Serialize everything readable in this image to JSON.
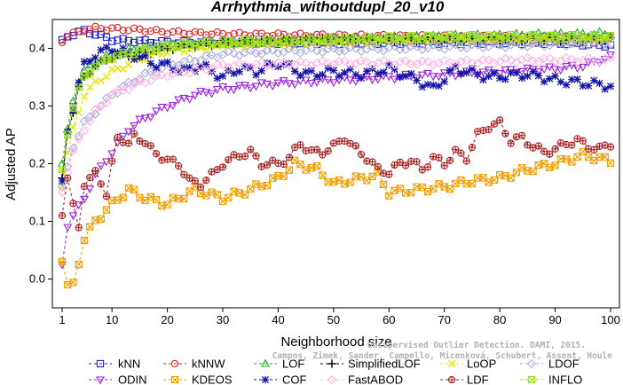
{
  "chart_data": {
    "type": "line",
    "title": "Arrhythmia_withoutdupl_20_v10",
    "xlabel": "Neighborhood size",
    "ylabel": "Adjusted AP",
    "xlim": [
      1,
      100
    ],
    "ylim": [
      -0.05,
      0.45
    ],
    "xticks": [
      1,
      10,
      20,
      30,
      40,
      50,
      60,
      70,
      80,
      90,
      100
    ],
    "yticks": [
      0.0,
      0.1,
      0.2,
      0.3,
      0.4
    ],
    "ytick_labels": [
      "0.0",
      "0.1",
      "0.2",
      "0.3",
      "0.4"
    ],
    "legend_position": "bottom",
    "watermark": [
      "Unsupervised Outlier Detection. DAMI, 2015.",
      "Campos, Zimek, Sander, Campello, Micenková, Schubert, Assent, Houle"
    ],
    "series": [
      {
        "name": "kNN",
        "color": "#2222cc",
        "marker": "square",
        "anchors": [
          [
            1,
            0.415
          ],
          [
            2,
            0.42
          ],
          [
            3,
            0.425
          ],
          [
            4,
            0.428
          ],
          [
            5,
            0.43
          ],
          [
            7,
            0.425
          ],
          [
            10,
            0.415
          ],
          [
            20,
            0.41
          ],
          [
            30,
            0.41
          ],
          [
            50,
            0.41
          ],
          [
            70,
            0.41
          ],
          [
            90,
            0.41
          ],
          [
            100,
            0.405
          ]
        ],
        "amp": 0.003
      },
      {
        "name": "kNNW",
        "color": "#dd2222",
        "marker": "circle",
        "anchors": [
          [
            1,
            0.41
          ],
          [
            2,
            0.42
          ],
          [
            3,
            0.425
          ],
          [
            5,
            0.432
          ],
          [
            7,
            0.435
          ],
          [
            10,
            0.434
          ],
          [
            15,
            0.432
          ],
          [
            20,
            0.428
          ],
          [
            30,
            0.425
          ],
          [
            50,
            0.422
          ],
          [
            70,
            0.42
          ],
          [
            100,
            0.418
          ]
        ],
        "amp": 0.003
      },
      {
        "name": "LOF",
        "color": "#22aa22",
        "marker": "triangle",
        "anchors": [
          [
            1,
            0.2
          ],
          [
            2,
            0.26
          ],
          [
            3,
            0.31
          ],
          [
            4,
            0.345
          ],
          [
            5,
            0.36
          ],
          [
            7,
            0.375
          ],
          [
            10,
            0.39
          ],
          [
            15,
            0.4
          ],
          [
            20,
            0.405
          ],
          [
            30,
            0.41
          ],
          [
            50,
            0.415
          ],
          [
            70,
            0.42
          ],
          [
            100,
            0.425
          ]
        ],
        "amp": 0.004
      },
      {
        "name": "SimplifiedLOF",
        "color": "#000000",
        "marker": "plus",
        "anchors": [
          [
            1,
            0.175
          ],
          [
            2,
            0.255
          ],
          [
            3,
            0.29
          ],
          [
            4,
            0.33
          ],
          [
            5,
            0.35
          ],
          [
            7,
            0.37
          ],
          [
            10,
            0.385
          ],
          [
            15,
            0.39
          ],
          [
            20,
            0.4
          ],
          [
            30,
            0.41
          ],
          [
            50,
            0.415
          ],
          [
            70,
            0.415
          ],
          [
            100,
            0.415
          ]
        ],
        "amp": 0.004
      },
      {
        "name": "LoOP",
        "color": "#e6e600",
        "marker": "x",
        "anchors": [
          [
            1,
            0.16
          ],
          [
            2,
            0.22
          ],
          [
            3,
            0.26
          ],
          [
            4,
            0.29
          ],
          [
            5,
            0.32
          ],
          [
            7,
            0.34
          ],
          [
            10,
            0.36
          ],
          [
            15,
            0.38
          ],
          [
            20,
            0.395
          ],
          [
            30,
            0.405
          ],
          [
            50,
            0.41
          ],
          [
            70,
            0.415
          ],
          [
            100,
            0.415
          ]
        ],
        "amp": 0.004
      },
      {
        "name": "LDOF",
        "color": "#aaaadd",
        "marker": "diamond",
        "anchors": [
          [
            1,
            0.16
          ],
          [
            3,
            0.23
          ],
          [
            5,
            0.27
          ],
          [
            7,
            0.29
          ],
          [
            10,
            0.32
          ],
          [
            15,
            0.35
          ],
          [
            20,
            0.37
          ],
          [
            30,
            0.39
          ],
          [
            40,
            0.395
          ],
          [
            60,
            0.4
          ],
          [
            80,
            0.405
          ],
          [
            100,
            0.41
          ]
        ],
        "amp": 0.004
      },
      {
        "name": "ODIN",
        "color": "#9922dd",
        "marker": "triangle-down",
        "anchors": [
          [
            1,
            0.025
          ],
          [
            2,
            0.09
          ],
          [
            3,
            0.11
          ],
          [
            5,
            0.14
          ],
          [
            7,
            0.18
          ],
          [
            10,
            0.22
          ],
          [
            13,
            0.26
          ],
          [
            16,
            0.28
          ],
          [
            20,
            0.3
          ],
          [
            25,
            0.32
          ],
          [
            30,
            0.33
          ],
          [
            40,
            0.34
          ],
          [
            50,
            0.345
          ],
          [
            60,
            0.35
          ],
          [
            70,
            0.355
          ],
          [
            80,
            0.36
          ],
          [
            90,
            0.365
          ],
          [
            95,
            0.37
          ],
          [
            100,
            0.385
          ]
        ],
        "amp": 0.004
      },
      {
        "name": "KDEOS",
        "color": "#f0a000",
        "marker": "square-x",
        "anchors": [
          [
            1,
            0.03
          ],
          [
            2,
            -0.01
          ],
          [
            3,
            -0.01
          ],
          [
            4,
            0.03
          ],
          [
            5,
            0.07
          ],
          [
            7,
            0.1
          ],
          [
            10,
            0.13
          ],
          [
            13,
            0.155
          ],
          [
            16,
            0.14
          ],
          [
            20,
            0.13
          ],
          [
            25,
            0.155
          ],
          [
            30,
            0.14
          ],
          [
            35,
            0.155
          ],
          [
            40,
            0.175
          ],
          [
            43,
            0.2
          ],
          [
            47,
            0.19
          ],
          [
            50,
            0.165
          ],
          [
            55,
            0.175
          ],
          [
            58,
            0.18
          ],
          [
            60,
            0.15
          ],
          [
            65,
            0.155
          ],
          [
            70,
            0.16
          ],
          [
            75,
            0.17
          ],
          [
            80,
            0.175
          ],
          [
            85,
            0.19
          ],
          [
            90,
            0.2
          ],
          [
            95,
            0.215
          ],
          [
            100,
            0.205
          ]
        ],
        "amp": 0.006
      },
      {
        "name": "COF",
        "color": "#1111aa",
        "marker": "star",
        "anchors": [
          [
            1,
            0.17
          ],
          [
            2,
            0.255
          ],
          [
            3,
            0.3
          ],
          [
            4,
            0.34
          ],
          [
            5,
            0.37
          ],
          [
            7,
            0.39
          ],
          [
            10,
            0.4
          ],
          [
            15,
            0.385
          ],
          [
            17,
            0.375
          ],
          [
            20,
            0.37
          ],
          [
            23,
            0.36
          ],
          [
            26,
            0.37
          ],
          [
            30,
            0.35
          ],
          [
            33,
            0.365
          ],
          [
            36,
            0.36
          ],
          [
            40,
            0.375
          ],
          [
            45,
            0.355
          ],
          [
            50,
            0.36
          ],
          [
            55,
            0.355
          ],
          [
            60,
            0.365
          ],
          [
            65,
            0.345
          ],
          [
            68,
            0.33
          ],
          [
            72,
            0.365
          ],
          [
            78,
            0.35
          ],
          [
            85,
            0.355
          ],
          [
            90,
            0.345
          ],
          [
            100,
            0.335
          ]
        ],
        "amp": 0.007
      },
      {
        "name": "FastABOD",
        "color": "#ffb3e6",
        "marker": "diamond",
        "anchors": [
          [
            1,
            0.15
          ],
          [
            3,
            0.22
          ],
          [
            5,
            0.26
          ],
          [
            7,
            0.29
          ],
          [
            10,
            0.32
          ],
          [
            15,
            0.34
          ],
          [
            20,
            0.355
          ],
          [
            30,
            0.37
          ],
          [
            50,
            0.375
          ],
          [
            70,
            0.375
          ],
          [
            85,
            0.38
          ],
          [
            100,
            0.38
          ]
        ],
        "amp": 0.004
      },
      {
        "name": "LDF",
        "color": "#aa2222",
        "marker": "circle-plus",
        "anchors": [
          [
            1,
            0.11
          ],
          [
            2,
            0.175
          ],
          [
            3,
            0.13
          ],
          [
            4,
            0.095
          ],
          [
            5,
            0.16
          ],
          [
            6,
            0.17
          ],
          [
            7,
            0.19
          ],
          [
            8,
            0.17
          ],
          [
            9,
            0.14
          ],
          [
            10,
            0.2
          ],
          [
            11,
            0.25
          ],
          [
            12,
            0.24
          ],
          [
            13,
            0.23
          ],
          [
            14,
            0.25
          ],
          [
            15,
            0.245
          ],
          [
            17,
            0.225
          ],
          [
            20,
            0.205
          ],
          [
            22,
            0.2
          ],
          [
            24,
            0.17
          ],
          [
            26,
            0.165
          ],
          [
            28,
            0.18
          ],
          [
            30,
            0.2
          ],
          [
            33,
            0.215
          ],
          [
            35,
            0.22
          ],
          [
            37,
            0.2
          ],
          [
            40,
            0.2
          ],
          [
            42,
            0.21
          ],
          [
            44,
            0.235
          ],
          [
            46,
            0.22
          ],
          [
            48,
            0.22
          ],
          [
            50,
            0.23
          ],
          [
            52,
            0.245
          ],
          [
            54,
            0.225
          ],
          [
            56,
            0.21
          ],
          [
            58,
            0.19
          ],
          [
            60,
            0.185
          ],
          [
            62,
            0.2
          ],
          [
            64,
            0.205
          ],
          [
            66,
            0.19
          ],
          [
            68,
            0.21
          ],
          [
            70,
            0.2
          ],
          [
            72,
            0.22
          ],
          [
            74,
            0.21
          ],
          [
            76,
            0.25
          ],
          [
            78,
            0.265
          ],
          [
            80,
            0.27
          ],
          [
            82,
            0.24
          ],
          [
            84,
            0.245
          ],
          [
            86,
            0.23
          ],
          [
            88,
            0.22
          ],
          [
            90,
            0.225
          ],
          [
            92,
            0.235
          ],
          [
            94,
            0.24
          ],
          [
            96,
            0.23
          ],
          [
            98,
            0.225
          ],
          [
            100,
            0.235
          ]
        ],
        "amp": 0.006
      },
      {
        "name": "INFLO",
        "color": "#99dd22",
        "marker": "square-x",
        "anchors": [
          [
            1,
            0.19
          ],
          [
            2,
            0.25
          ],
          [
            3,
            0.3
          ],
          [
            4,
            0.33
          ],
          [
            5,
            0.35
          ],
          [
            7,
            0.37
          ],
          [
            10,
            0.385
          ],
          [
            15,
            0.395
          ],
          [
            20,
            0.405
          ],
          [
            30,
            0.41
          ],
          [
            50,
            0.415
          ],
          [
            70,
            0.42
          ],
          [
            100,
            0.42
          ]
        ],
        "amp": 0.004
      }
    ]
  }
}
